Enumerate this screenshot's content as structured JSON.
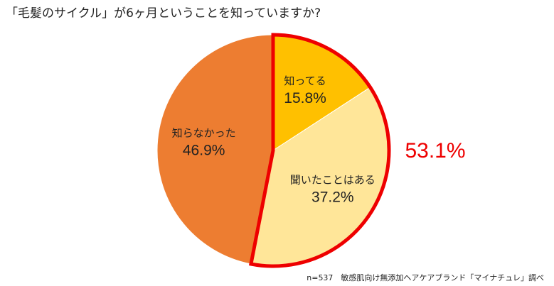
{
  "chart_data": {
    "type": "pie",
    "title": "「毛髪のサイクル」が6ヶ月ということを知っていますか?",
    "start_angle": "top",
    "direction": "clockwise",
    "slices": [
      {
        "label": "知ってる",
        "value": 15.8,
        "value_label": "15.8%",
        "color": "#FFC000"
      },
      {
        "label": "聞いたことはある",
        "value": 37.2,
        "value_label": "37.2%",
        "color": "#FFE699"
      },
      {
        "label": "知らなかった",
        "value": 46.9,
        "value_label": "46.9%",
        "color": "#ED7D31"
      }
    ],
    "highlight": {
      "slices": [
        "知ってる",
        "聞いたことはある"
      ],
      "total_label": "53.1%",
      "color": "#EE0000"
    },
    "note": "n=537　敏感肌向け無添加ヘアケアブランド「マイナチュレ」調べ"
  }
}
